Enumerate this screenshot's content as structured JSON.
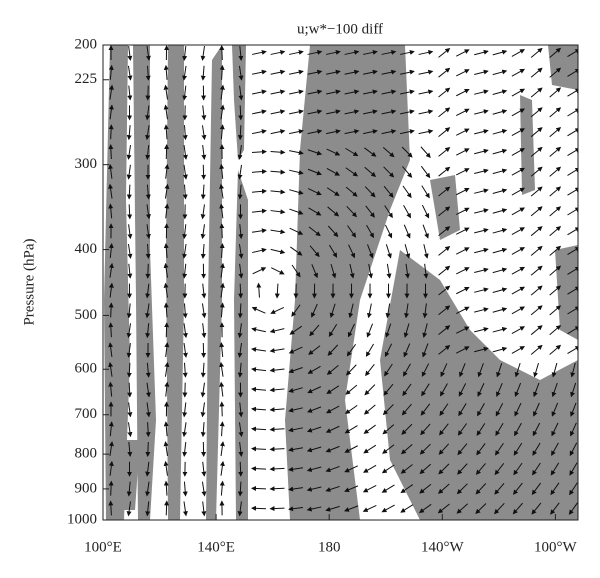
{
  "chart_data": {
    "type": "vector",
    "title": "u;w*−100 diff",
    "y_label": "Pressure (hPa)",
    "xlim": [
      100,
      268
    ],
    "xticks": [
      {
        "value": 100,
        "label": "100°E"
      },
      {
        "value": 140,
        "label": "140°E"
      },
      180,
      {
        "value": 220,
        "label": "140°W"
      },
      {
        "value": 260,
        "label": "100°W"
      }
    ],
    "ylim": [
      1000,
      200
    ],
    "y_scale": "log",
    "yticks": [
      200,
      225,
      300,
      400,
      500,
      600,
      700,
      800,
      900,
      1000
    ]
  }
}
